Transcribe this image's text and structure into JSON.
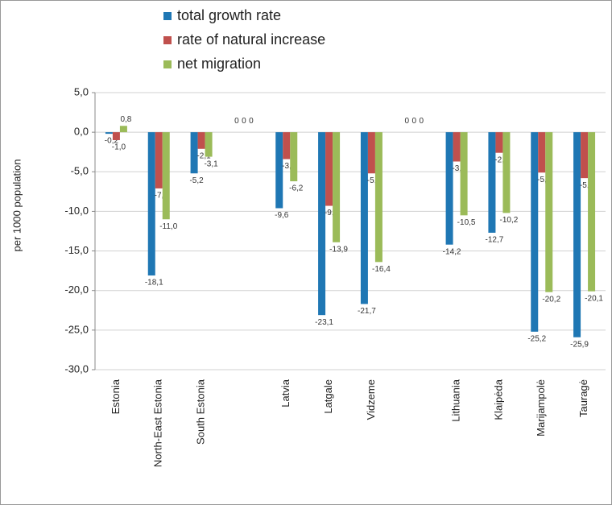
{
  "chart_data": {
    "type": "bar",
    "y_label": "per 1000 population",
    "categories": [
      "Estonia",
      "North-East Estonia",
      "South Estonia",
      null,
      "Latvia",
      "Latgale",
      "Vidzeme",
      null,
      "Lithuania",
      "Klaipėda",
      "Marijampolė",
      "Tauragė"
    ],
    "series": [
      {
        "name": "total growth rate",
        "color": "#1f77b4",
        "values": [
          -0.2,
          -18.1,
          -5.2,
          0,
          -9.6,
          -23.1,
          -21.7,
          0,
          -14.2,
          -12.7,
          -25.2,
          -25.9
        ],
        "value_labels": [
          "-0,2",
          "-18,1",
          "-5,2",
          "0",
          "-9,6",
          "-23,1",
          "-21,7",
          "0",
          "-14,2",
          "-12,7",
          "-25,2",
          "-25,9"
        ]
      },
      {
        "name": "rate of natural increase",
        "color": "#c0504d",
        "values": [
          -1.0,
          -7.1,
          -2.1,
          0,
          -3.4,
          -9.3,
          -5.2,
          0,
          -3.7,
          -2.6,
          -5.1,
          -5.8
        ],
        "value_labels": [
          "-1,0",
          "-7,1",
          "-2,1",
          "0",
          "-3,4",
          "-9,3",
          "-5,2",
          "0",
          "-3,7",
          "-2,6",
          "-5,1",
          "-5,8"
        ]
      },
      {
        "name": "net migration",
        "color": "#9bbb59",
        "values": [
          0.8,
          -11.0,
          -3.1,
          0,
          -6.2,
          -13.9,
          -16.4,
          0,
          -10.5,
          -10.2,
          -20.2,
          -20.1
        ],
        "value_labels": [
          "0,8",
          "-11,0",
          "-3,1",
          "0",
          "-6,2",
          "-13,9",
          "-16,4",
          "0",
          "-10,5",
          "-10,2",
          "-20,2",
          "-20,1"
        ]
      }
    ],
    "ylim": [
      -30,
      5
    ],
    "yticks": [
      {
        "value": -30,
        "label": "-30,0"
      },
      {
        "value": -25,
        "label": "-25,0"
      },
      {
        "value": -20,
        "label": "-20,0"
      },
      {
        "value": -15,
        "label": "-15,0"
      },
      {
        "value": -10,
        "label": "-10,0"
      },
      {
        "value": -5,
        "label": "-5,0"
      },
      {
        "value": 0,
        "label": "0,0"
      },
      {
        "value": 5,
        "label": "5,0"
      }
    ],
    "grid": true
  }
}
